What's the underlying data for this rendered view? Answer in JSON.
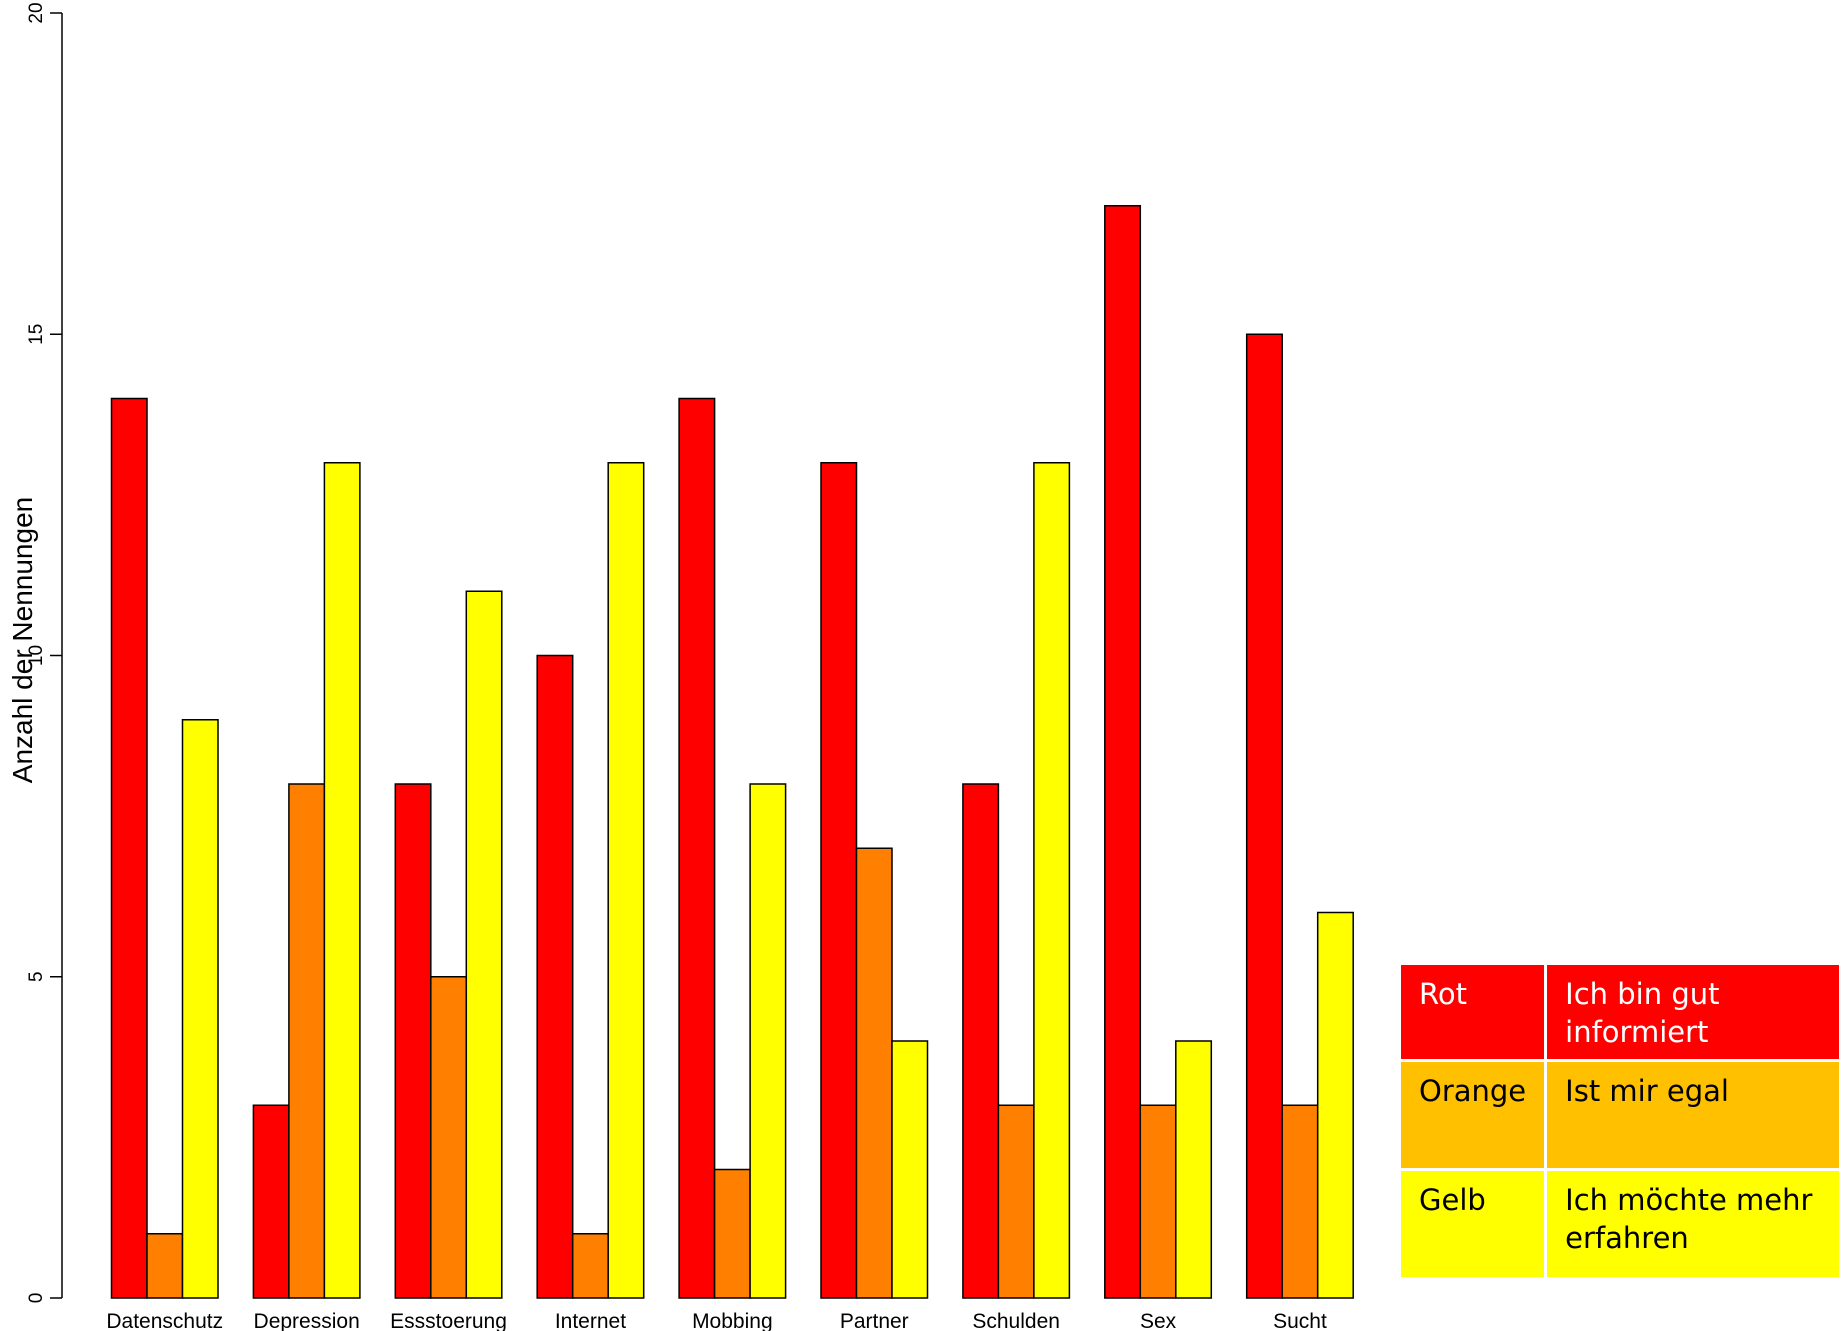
{
  "chart_data": {
    "type": "bar",
    "title": "",
    "ylabel": "Anzahl der Nennungen",
    "xlabel": "",
    "ylim": [
      0,
      20
    ],
    "yticks": [
      0,
      5,
      10,
      15,
      20
    ],
    "grid": false,
    "categories": [
      "Datenschutz",
      "Depression",
      "Essstoerung",
      "Internet",
      "Mobbing",
      "Partner",
      "Schulden",
      "Sex",
      "Sucht"
    ],
    "series": [
      {
        "color": "#ff0000",
        "values": [
          14,
          3,
          8,
          10,
          14,
          13,
          8,
          17,
          15
        ]
      },
      {
        "color": "#ff7f00",
        "values": [
          1,
          8,
          5,
          1,
          2,
          7,
          3,
          3,
          3
        ]
      },
      {
        "color": "#ffff00",
        "values": [
          9,
          13,
          11,
          13,
          8,
          4,
          13,
          4,
          6
        ]
      }
    ]
  },
  "legend_table": {
    "rows": [
      {
        "color_name": "Rot",
        "meaning": "Ich bin gut informiert",
        "bg": "#ff0000"
      },
      {
        "color_name": "Orange",
        "meaning": "Ist mir egal",
        "bg": "#ffc000"
      },
      {
        "color_name": "Gelb",
        "meaning": "Ich möchte mehr erfahren",
        "bg": "#ffff00"
      }
    ]
  }
}
